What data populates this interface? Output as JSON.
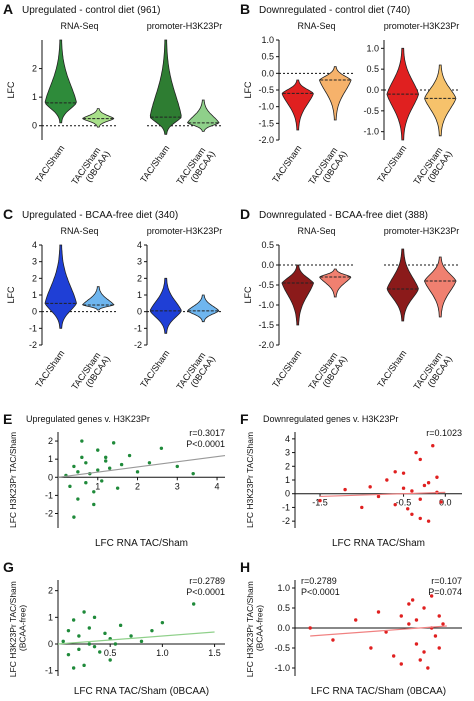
{
  "chart_data": [
    {
      "type": "violin",
      "label": "A",
      "title": "Upregulated - control diet (961)",
      "ylabel": "LFC",
      "subplots": [
        {
          "title": "RNA-Seq",
          "categories": [
            "TAC/Sham",
            "TAC/Sham (0BCAA)"
          ],
          "ylim": [
            -0.5,
            3
          ],
          "yticks": [
            0,
            1,
            2
          ],
          "reference_line": 0,
          "violins": [
            {
              "color": "#2e8b3a",
              "min": 0.1,
              "median": 0.8,
              "max": 3.0
            },
            {
              "color": "#a8e08a",
              "min": -0.05,
              "median": 0.25,
              "max": 0.6
            }
          ]
        },
        {
          "title": "promoter-H3K23Pr",
          "categories": [
            "TAC/Sham",
            "TAC/Sham (0BCAA)"
          ],
          "ylim": [
            -0.5,
            3
          ],
          "reference_line": 0,
          "violins": [
            {
              "color": "#2e7d32",
              "min": -0.3,
              "median": 0.3,
              "max": 3.0
            },
            {
              "color": "#8fd08a",
              "min": -0.2,
              "median": 0.1,
              "max": 0.9
            }
          ]
        }
      ]
    },
    {
      "type": "violin",
      "label": "B",
      "title": "Downregulated - control diet (740)",
      "ylabel": "LFC",
      "subplots": [
        {
          "title": "RNA-Seq",
          "categories": [
            "TAC/Sham",
            "TAC/Sham (0BCAA)"
          ],
          "ylim": [
            -2,
            1
          ],
          "yticks": [
            {
              "value": 1,
              "label": "1.0"
            },
            0.5,
            {
              "value": 0,
              "label": "0.0"
            },
            -0.5,
            {
              "value": -1,
              "label": "-1.0"
            },
            -1.5,
            {
              "value": -2,
              "label": "-2.0"
            }
          ],
          "reference_line": 0,
          "violins": [
            {
              "color": "#e02020",
              "min": -1.7,
              "median": -0.6,
              "max": -0.2
            },
            {
              "color": "#f6b26b",
              "min": -1.4,
              "median": -0.2,
              "max": 0.2
            }
          ]
        },
        {
          "title": "promoter-H3K23Pr",
          "categories": [
            "TAC/Sham",
            "TAC/Sham (0BCAA)"
          ],
          "ylim": [
            -1.2,
            1.2
          ],
          "yticks": [
            {
              "value": 1,
              "label": "1.0"
            },
            0.5,
            {
              "value": 0,
              "label": "0.0"
            },
            -0.5,
            {
              "value": -1,
              "label": "-1.0"
            }
          ],
          "reference_line": 0,
          "violins": [
            {
              "color": "#e02020",
              "min": -1.2,
              "median": -0.1,
              "max": 1.0
            },
            {
              "color": "#f6c26b",
              "min": -1.1,
              "median": -0.2,
              "max": 0.6
            }
          ]
        }
      ]
    },
    {
      "type": "violin",
      "label": "C",
      "title": "Upregulated - BCAA-free diet (340)",
      "ylabel": "LFC",
      "subplots": [
        {
          "title": "RNA-Seq",
          "categories": [
            "TAC/Sham",
            "TAC/Sham (0BCAA)"
          ],
          "ylim": [
            -2,
            4
          ],
          "yticks": [
            -2,
            -1,
            0,
            1,
            2,
            3,
            4
          ],
          "reference_line": 0,
          "violins": [
            {
              "color": "#1f3fd6",
              "min": -1,
              "median": 0.5,
              "max": 4
            },
            {
              "color": "#6fb6ef",
              "min": 0.1,
              "median": 0.4,
              "max": 1.5
            }
          ]
        },
        {
          "title": "promoter-H3K23Pr",
          "categories": [
            "TAC/Sham",
            "TAC/Sham (0BCAA)"
          ],
          "ylim": [
            -2,
            4
          ],
          "yticks": [
            -2,
            -1,
            0,
            1,
            2,
            3,
            4
          ],
          "reference_line": 0,
          "violins": [
            {
              "color": "#1f3fd6",
              "min": -1.3,
              "median": 0.05,
              "max": 2
            },
            {
              "color": "#6fb6ef",
              "min": -0.6,
              "median": 0.05,
              "max": 1.0
            }
          ]
        }
      ]
    },
    {
      "type": "violin",
      "label": "D",
      "title": "Downregulated - BCAA-free diet (388)",
      "ylabel": "LFC",
      "subplots": [
        {
          "title": "RNA-Seq",
          "categories": [
            "TAC/Sham",
            "TAC/Sham (0BCAA)"
          ],
          "ylim": [
            -2,
            0.5
          ],
          "yticks": [
            0.5,
            {
              "value": 0,
              "label": "0.0"
            },
            -0.5,
            {
              "value": -1,
              "label": "-1.0"
            },
            -1.5,
            {
              "value": -2,
              "label": "-2.0"
            }
          ],
          "reference_line": 0,
          "violins": [
            {
              "color": "#8b1a1a",
              "min": -1.5,
              "median": -0.45,
              "max": 0
            },
            {
              "color": "#f08070",
              "min": -0.8,
              "median": -0.3,
              "max": -0.1
            }
          ]
        },
        {
          "title": "promoter-H3K23Pr",
          "categories": [
            "TAC/Sham",
            "TAC/Sham (0BCAA)"
          ],
          "ylim": [
            -2,
            0.5
          ],
          "reference_line": 0,
          "violins": [
            {
              "color": "#8b1a1a",
              "min": -1.4,
              "median": -0.6,
              "max": 0.4
            },
            {
              "color": "#f08070",
              "min": -1.3,
              "median": -0.4,
              "max": 0.2
            }
          ]
        }
      ]
    },
    {
      "type": "scatter",
      "label": "E",
      "title": "Upregulated genes v. H3K23Pr",
      "xlabel": "LFC RNA TAC/Sham",
      "ylabel": "LFC H3K23Pr TAC/Sham",
      "xlim": [
        0,
        4.2
      ],
      "ylim": [
        -2.8,
        2.5
      ],
      "xticks": [
        1,
        2,
        3,
        4
      ],
      "yticks": [
        -2,
        -1,
        0,
        1,
        2
      ],
      "color": "#1f8a3a",
      "x": [
        0.2,
        0.3,
        0.4,
        0.5,
        0.5,
        0.6,
        0.7,
        0.7,
        0.8,
        0.9,
        1.0,
        1.0,
        1.1,
        1.2,
        1.3,
        1.4,
        1.5,
        1.6,
        1.8,
        2.0,
        2.3,
        2.6,
        3.0,
        3.4,
        0.4,
        0.6,
        0.9,
        1.2
      ],
      "y": [
        0.1,
        -0.5,
        0.6,
        -1.2,
        0.3,
        1.1,
        -0.3,
        0.8,
        0.2,
        -0.8,
        1.5,
        0.4,
        -0.2,
        0.9,
        0.5,
        1.9,
        -0.6,
        0.7,
        1.2,
        0.3,
        0.8,
        1.6,
        0.6,
        0.2,
        -2.2,
        2.0,
        -1.5,
        1.1
      ],
      "fit": {
        "x": [
          0,
          4.2
        ],
        "y": [
          0,
          1.2
        ],
        "color": "#999999"
      },
      "annotations": [
        [
          "r=0.3017",
          "P<0.0001"
        ]
      ]
    },
    {
      "type": "scatter",
      "label": "F",
      "title": "Downregulated genes v. H3K23Pr",
      "xlabel": "LFC RNA TAC/Sham",
      "ylabel": "LFC H3K23Pr TAC/Sham",
      "xlim": [
        -1.8,
        0.2
      ],
      "ylim": [
        -2.5,
        4.5
      ],
      "xticks": [
        -1.5,
        -0.5,
        {
          "value": 0,
          "label": "0.0"
        }
      ],
      "yticks": [
        -2,
        -1,
        0,
        1,
        2,
        3,
        4
      ],
      "color": "#e02020",
      "x": [
        -1.5,
        -1.2,
        -1.0,
        -0.9,
        -0.8,
        -0.7,
        -0.6,
        -0.5,
        -0.5,
        -0.4,
        -0.4,
        -0.3,
        -0.3,
        -0.2,
        -0.2,
        -0.15,
        -0.1,
        -0.1,
        -0.05,
        -0.3,
        -0.6,
        -0.25,
        -0.45,
        -0.35
      ],
      "y": [
        -0.5,
        0.3,
        -1.0,
        0.5,
        -0.2,
        1.0,
        -0.8,
        0.4,
        1.5,
        -1.5,
        0.2,
        2.5,
        -0.4,
        0.8,
        -2.0,
        3.5,
        0.1,
        1.2,
        -0.6,
        -1.8,
        1.6,
        0.6,
        -1.1,
        3.0
      ],
      "fit": {
        "x": [
          -1.5,
          0
        ],
        "y": [
          -0.2,
          0.1
        ],
        "color": "#f08080"
      },
      "annotations": [
        [
          "r=0.1023"
        ]
      ]
    },
    {
      "type": "scatter",
      "label": "G",
      "xlabel": "LFC RNA TAC/Sham (0BCAA)",
      "ylabel": "LFC H3K23Pr TAC/Sham (BCAA-free)",
      "xlim": [
        0,
        1.6
      ],
      "ylim": [
        -1.2,
        2.4
      ],
      "xticks": [
        0.5,
        {
          "value": 1,
          "label": "1.0"
        },
        1.5
      ],
      "yticks": [
        -1,
        0,
        1,
        2
      ],
      "color": "#1f8a3a",
      "x": [
        0.05,
        0.1,
        0.1,
        0.15,
        0.2,
        0.2,
        0.25,
        0.3,
        0.3,
        0.35,
        0.4,
        0.45,
        0.5,
        0.5,
        0.6,
        0.7,
        0.8,
        0.9,
        1.0,
        1.3,
        0.15,
        0.25,
        0.35,
        0.55
      ],
      "y": [
        0.1,
        -0.4,
        0.5,
        0.9,
        -0.2,
        0.3,
        -0.8,
        0.6,
        0.0,
        1.0,
        -0.3,
        0.4,
        0.2,
        -0.6,
        0.7,
        0.3,
        0.1,
        0.5,
        0.8,
        1.5,
        -0.9,
        1.2,
        -0.1,
        0.0
      ],
      "fit": {
        "x": [
          0,
          1.5
        ],
        "y": [
          0,
          0.45
        ],
        "color": "#8fd08a"
      },
      "annotations": [
        [
          "r=0.2789",
          "P<0.0001"
        ]
      ]
    },
    {
      "type": "scatter",
      "label": "H",
      "xlabel": "LFC RNA TAC/Sham (0BCAA)",
      "ylabel": "LFC H3K23Pr TAC/Sham (BCAA-free)",
      "xlim": [
        -2,
        0.2
      ],
      "ylim": [
        -1.2,
        1.2
      ],
      "yticks": [
        {
          "value": -1,
          "label": "-1.0"
        },
        -0.5,
        {
          "value": 0,
          "label": "0.0"
        },
        0.5,
        {
          "value": 1,
          "label": "1.0"
        }
      ],
      "color": "#e02020",
      "x": [
        -1.8,
        -1.5,
        -1.2,
        -1.0,
        -0.9,
        -0.8,
        -0.7,
        -0.6,
        -0.6,
        -0.5,
        -0.5,
        -0.4,
        -0.4,
        -0.3,
        -0.3,
        -0.25,
        -0.2,
        -0.2,
        -0.15,
        -0.1,
        -0.1,
        -0.05,
        -0.35,
        -0.45
      ],
      "y": [
        0.0,
        -0.3,
        0.2,
        -0.5,
        0.4,
        -0.1,
        -0.7,
        0.3,
        -0.9,
        0.1,
        0.6,
        -0.4,
        0.2,
        -0.6,
        0.5,
        -1.0,
        0.0,
        0.8,
        -0.2,
        0.3,
        -0.5,
        0.1,
        -0.8,
        0.7
      ],
      "fit": {
        "x": [
          -1.8,
          0
        ],
        "y": [
          -0.2,
          0.05
        ],
        "color": "#f08080"
      },
      "annotations": [
        [
          "r=0.2789",
          "P<0.0001"
        ],
        [
          "r=0.107",
          "P=0.074"
        ]
      ]
    }
  ]
}
